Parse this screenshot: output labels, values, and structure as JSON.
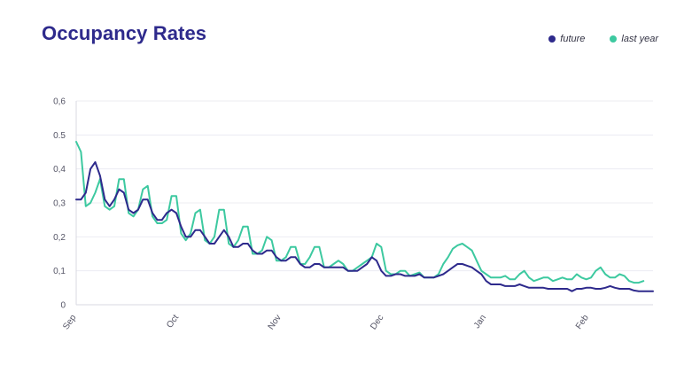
{
  "title": "Occupancy Rates",
  "legend": [
    {
      "label": "future",
      "color": "#2e2a8c"
    },
    {
      "label": "last year",
      "color": "#3dc9a0"
    }
  ],
  "chart_data": {
    "type": "line",
    "title": "Occupancy Rates",
    "xlabel": "",
    "ylabel": "",
    "ylim": [
      0,
      0.6
    ],
    "y_ticks": [
      "0",
      "0,1",
      "0,2",
      "0,3",
      "0,4",
      "0.5",
      "0,6"
    ],
    "x_ticks": [
      "Sep",
      "Oct",
      "Nov",
      "Dec",
      "Jan",
      "Feb"
    ],
    "grid": true,
    "legend_position": "top-right",
    "series": [
      {
        "name": "future",
        "color": "#2e2a8c",
        "points": [
          [
            0,
            0.31
          ],
          [
            1,
            0.31
          ],
          [
            2,
            0.33
          ],
          [
            3,
            0.4
          ],
          [
            4,
            0.42
          ],
          [
            5,
            0.38
          ],
          [
            6,
            0.31
          ],
          [
            7,
            0.29
          ],
          [
            8,
            0.31
          ],
          [
            9,
            0.34
          ],
          [
            10,
            0.33
          ],
          [
            11,
            0.28
          ],
          [
            12,
            0.27
          ],
          [
            13,
            0.28
          ],
          [
            14,
            0.31
          ],
          [
            15,
            0.31
          ],
          [
            16,
            0.27
          ],
          [
            17,
            0.25
          ],
          [
            18,
            0.25
          ],
          [
            19,
            0.27
          ],
          [
            20,
            0.28
          ],
          [
            21,
            0.27
          ],
          [
            22,
            0.23
          ],
          [
            23,
            0.2
          ],
          [
            24,
            0.2
          ],
          [
            25,
            0.22
          ],
          [
            26,
            0.22
          ],
          [
            27,
            0.2
          ],
          [
            28,
            0.18
          ],
          [
            29,
            0.18
          ],
          [
            30,
            0.2
          ],
          [
            31,
            0.22
          ],
          [
            32,
            0.2
          ],
          [
            33,
            0.17
          ],
          [
            34,
            0.17
          ],
          [
            35,
            0.18
          ],
          [
            36,
            0.18
          ],
          [
            37,
            0.16
          ],
          [
            38,
            0.15
          ],
          [
            39,
            0.15
          ],
          [
            40,
            0.16
          ],
          [
            41,
            0.16
          ],
          [
            42,
            0.14
          ],
          [
            43,
            0.13
          ],
          [
            44,
            0.13
          ],
          [
            45,
            0.14
          ],
          [
            46,
            0.14
          ],
          [
            47,
            0.12
          ],
          [
            48,
            0.11
          ],
          [
            49,
            0.11
          ],
          [
            50,
            0.12
          ],
          [
            51,
            0.12
          ],
          [
            52,
            0.11
          ],
          [
            53,
            0.11
          ],
          [
            54,
            0.11
          ],
          [
            55,
            0.11
          ],
          [
            56,
            0.11
          ],
          [
            57,
            0.1
          ],
          [
            58,
            0.1
          ],
          [
            59,
            0.1
          ],
          [
            60,
            0.11
          ],
          [
            61,
            0.12
          ],
          [
            62,
            0.14
          ],
          [
            63,
            0.13
          ],
          [
            64,
            0.1
          ],
          [
            65,
            0.085
          ],
          [
            66,
            0.085
          ],
          [
            67,
            0.09
          ],
          [
            68,
            0.09
          ],
          [
            69,
            0.085
          ],
          [
            70,
            0.085
          ],
          [
            71,
            0.085
          ],
          [
            72,
            0.09
          ],
          [
            73,
            0.08
          ],
          [
            74,
            0.08
          ],
          [
            75,
            0.08
          ],
          [
            76,
            0.085
          ],
          [
            77,
            0.09
          ],
          [
            78,
            0.1
          ],
          [
            79,
            0.11
          ],
          [
            80,
            0.12
          ],
          [
            81,
            0.12
          ],
          [
            82,
            0.115
          ],
          [
            83,
            0.11
          ],
          [
            84,
            0.1
          ],
          [
            85,
            0.09
          ],
          [
            86,
            0.07
          ],
          [
            87,
            0.06
          ],
          [
            88,
            0.06
          ],
          [
            89,
            0.06
          ],
          [
            90,
            0.055
          ],
          [
            91,
            0.055
          ],
          [
            92,
            0.055
          ],
          [
            93,
            0.06
          ],
          [
            94,
            0.055
          ],
          [
            95,
            0.05
          ],
          [
            96,
            0.05
          ],
          [
            97,
            0.05
          ],
          [
            98,
            0.05
          ],
          [
            99,
            0.047
          ],
          [
            100,
            0.047
          ],
          [
            101,
            0.047
          ],
          [
            102,
            0.047
          ],
          [
            103,
            0.047
          ],
          [
            104,
            0.04
          ],
          [
            105,
            0.047
          ],
          [
            106,
            0.047
          ],
          [
            107,
            0.05
          ],
          [
            108,
            0.05
          ],
          [
            109,
            0.047
          ],
          [
            110,
            0.047
          ],
          [
            111,
            0.05
          ],
          [
            112,
            0.055
          ],
          [
            113,
            0.05
          ],
          [
            114,
            0.047
          ],
          [
            115,
            0.047
          ],
          [
            116,
            0.047
          ],
          [
            117,
            0.042
          ],
          [
            118,
            0.04
          ],
          [
            119,
            0.04
          ],
          [
            120,
            0.04
          ],
          [
            121,
            0.04
          ]
        ]
      },
      {
        "name": "last year",
        "color": "#3dc9a0",
        "points": [
          [
            0,
            0.48
          ],
          [
            1,
            0.45
          ],
          [
            2,
            0.29
          ],
          [
            3,
            0.3
          ],
          [
            4,
            0.33
          ],
          [
            5,
            0.37
          ],
          [
            6,
            0.29
          ],
          [
            7,
            0.28
          ],
          [
            8,
            0.29
          ],
          [
            9,
            0.37
          ],
          [
            10,
            0.37
          ],
          [
            11,
            0.27
          ],
          [
            12,
            0.26
          ],
          [
            13,
            0.28
          ],
          [
            14,
            0.34
          ],
          [
            15,
            0.35
          ],
          [
            16,
            0.26
          ],
          [
            17,
            0.24
          ],
          [
            18,
            0.24
          ],
          [
            19,
            0.25
          ],
          [
            20,
            0.32
          ],
          [
            21,
            0.32
          ],
          [
            22,
            0.21
          ],
          [
            23,
            0.19
          ],
          [
            24,
            0.21
          ],
          [
            25,
            0.27
          ],
          [
            26,
            0.28
          ],
          [
            27,
            0.19
          ],
          [
            28,
            0.18
          ],
          [
            29,
            0.2
          ],
          [
            30,
            0.28
          ],
          [
            31,
            0.28
          ],
          [
            32,
            0.18
          ],
          [
            33,
            0.17
          ],
          [
            34,
            0.19
          ],
          [
            35,
            0.23
          ],
          [
            36,
            0.23
          ],
          [
            37,
            0.15
          ],
          [
            38,
            0.15
          ],
          [
            39,
            0.16
          ],
          [
            40,
            0.2
          ],
          [
            41,
            0.19
          ],
          [
            42,
            0.13
          ],
          [
            43,
            0.13
          ],
          [
            44,
            0.14
          ],
          [
            45,
            0.17
          ],
          [
            46,
            0.17
          ],
          [
            47,
            0.12
          ],
          [
            48,
            0.12
          ],
          [
            49,
            0.14
          ],
          [
            50,
            0.17
          ],
          [
            51,
            0.17
          ],
          [
            52,
            0.11
          ],
          [
            53,
            0.11
          ],
          [
            54,
            0.12
          ],
          [
            55,
            0.13
          ],
          [
            56,
            0.12
          ],
          [
            57,
            0.1
          ],
          [
            58,
            0.1
          ],
          [
            59,
            0.11
          ],
          [
            60,
            0.12
          ],
          [
            61,
            0.13
          ],
          [
            62,
            0.14
          ],
          [
            63,
            0.18
          ],
          [
            64,
            0.17
          ],
          [
            65,
            0.1
          ],
          [
            66,
            0.09
          ],
          [
            67,
            0.09
          ],
          [
            68,
            0.1
          ],
          [
            69,
            0.1
          ],
          [
            70,
            0.085
          ],
          [
            71,
            0.09
          ],
          [
            72,
            0.095
          ],
          [
            73,
            0.08
          ],
          [
            74,
            0.08
          ],
          [
            75,
            0.08
          ],
          [
            76,
            0.09
          ],
          [
            77,
            0.12
          ],
          [
            78,
            0.14
          ],
          [
            79,
            0.165
          ],
          [
            80,
            0.175
          ],
          [
            81,
            0.18
          ],
          [
            82,
            0.17
          ],
          [
            83,
            0.16
          ],
          [
            84,
            0.13
          ],
          [
            85,
            0.1
          ],
          [
            86,
            0.09
          ],
          [
            87,
            0.08
          ],
          [
            88,
            0.08
          ],
          [
            89,
            0.08
          ],
          [
            90,
            0.085
          ],
          [
            91,
            0.075
          ],
          [
            92,
            0.075
          ],
          [
            93,
            0.09
          ],
          [
            94,
            0.1
          ],
          [
            95,
            0.08
          ],
          [
            96,
            0.07
          ],
          [
            97,
            0.075
          ],
          [
            98,
            0.08
          ],
          [
            99,
            0.08
          ],
          [
            100,
            0.07
          ],
          [
            101,
            0.075
          ],
          [
            102,
            0.08
          ],
          [
            103,
            0.075
          ],
          [
            104,
            0.075
          ],
          [
            105,
            0.09
          ],
          [
            106,
            0.08
          ],
          [
            107,
            0.075
          ],
          [
            108,
            0.08
          ],
          [
            109,
            0.1
          ],
          [
            110,
            0.11
          ],
          [
            111,
            0.09
          ],
          [
            112,
            0.08
          ],
          [
            113,
            0.08
          ],
          [
            114,
            0.09
          ],
          [
            115,
            0.085
          ],
          [
            116,
            0.07
          ],
          [
            117,
            0.065
          ],
          [
            118,
            0.065
          ],
          [
            119,
            0.07
          ]
        ]
      }
    ]
  }
}
